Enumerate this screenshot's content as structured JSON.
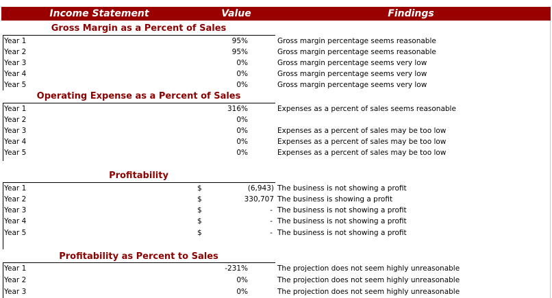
{
  "header": {
    "col1": "Income Statement",
    "col2": "Value",
    "col3": "Findings"
  },
  "sections": [
    {
      "title": "Gross Margin as a Percent of Sales",
      "rows": [
        {
          "label": "Year 1",
          "value": "95%",
          "finding": "Gross margin percentage seems reasonable"
        },
        {
          "label": "Year 2",
          "value": "95%",
          "finding": "Gross margin percentage seems reasonable"
        },
        {
          "label": "Year 3",
          "value": "0%",
          "finding": "Gross margin percentage seems very low"
        },
        {
          "label": "Year 4",
          "value": "0%",
          "finding": "Gross margin percentage seems very low"
        },
        {
          "label": "Year 5",
          "value": "0%",
          "finding": "Gross margin percentage seems very low"
        }
      ]
    },
    {
      "title": "Operating Expense as a Percent of Sales",
      "rows": [
        {
          "label": "Year 1",
          "value": "316%",
          "finding": "Expenses as a percent of sales seems reasonable"
        },
        {
          "label": "Year 2",
          "value": "0%",
          "finding": ""
        },
        {
          "label": "Year 3",
          "value": "0%",
          "finding": "Expenses as a percent of sales may be too low"
        },
        {
          "label": "Year 4",
          "value": "0%",
          "finding": "Expenses as a percent of sales may be too low"
        },
        {
          "label": "Year 5",
          "value": "0%",
          "finding": "Expenses as a percent of sales may be too low"
        }
      ]
    },
    {
      "title": "Profitability",
      "rows": [
        {
          "label": "Year 1",
          "currency": "$",
          "value": "(6,943)",
          "finding": "The business is not showing a profit"
        },
        {
          "label": "Year 2",
          "currency": "$",
          "value": "330,707",
          "finding": "The business is showing a profit"
        },
        {
          "label": "Year 3",
          "currency": "$",
          "value": "-",
          "finding": "The business is not showing a profit"
        },
        {
          "label": "Year 4",
          "currency": "$",
          "value": "-",
          "finding": "The business is not showing a profit"
        },
        {
          "label": "Year 5",
          "currency": "$",
          "value": "-",
          "finding": "The business is not showing a profit"
        }
      ]
    },
    {
      "title": "Profitability as Percent to Sales",
      "rows": [
        {
          "label": "Year 1",
          "value": "-231%",
          "finding": "The projection does not seem highly unreasonable"
        },
        {
          "label": "Year 2",
          "value": "0%",
          "finding": "The projection does not seem highly unreasonable"
        },
        {
          "label": "Year 3",
          "value": "0%",
          "finding": "The projection does not seem highly unreasonable"
        }
      ]
    }
  ],
  "colors": {
    "header_bg": "#9a0000",
    "header_text": "#ffffff",
    "section_title": "#8b0000"
  }
}
